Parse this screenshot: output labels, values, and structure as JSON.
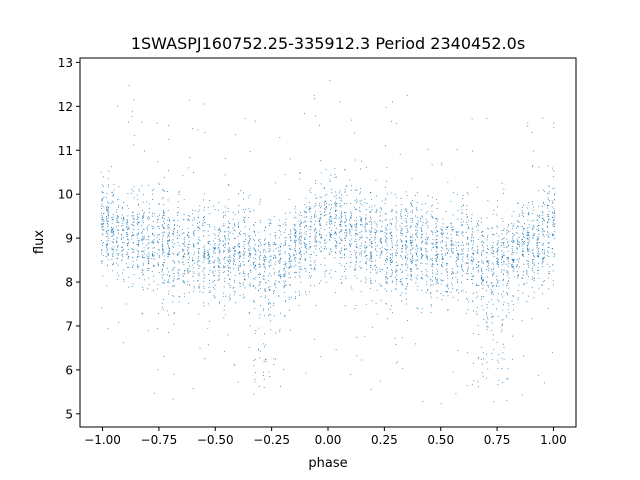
{
  "chart_data": {
    "type": "scatter",
    "title": "1SWASPJ160752.25-335912.3 Period 2340452.0s",
    "xlabel": "phase",
    "ylabel": "flux",
    "xlim": [
      -1.1,
      1.1
    ],
    "ylim": [
      4.7,
      13.1
    ],
    "xticks": [
      -1.0,
      -0.75,
      -0.5,
      -0.25,
      0.0,
      0.25,
      0.5,
      0.75,
      1.0
    ],
    "xtick_labels": [
      "−1.00",
      "−0.75",
      "−0.50",
      "−0.25",
      "0.00",
      "0.25",
      "0.50",
      "0.75",
      "1.00"
    ],
    "yticks": [
      5,
      6,
      7,
      8,
      9,
      10,
      11,
      12,
      13
    ],
    "ytick_labels": [
      "5",
      "6",
      "7",
      "8",
      "9",
      "10",
      "11",
      "12",
      "13"
    ],
    "grid": false,
    "legend": "none",
    "color": "#1f77b4",
    "description": "phase-folded light curve mirrored over phase -1..1; flux clusters near 9, sparse outliers from ~5 to ~12.7; dips near phase -0.28 and 0.72",
    "series": [
      {
        "name": "",
        "profile": [
          [
            -1.0,
            9.3
          ],
          [
            -0.9,
            9.1
          ],
          [
            -0.8,
            8.9
          ],
          [
            -0.7,
            8.7
          ],
          [
            -0.6,
            8.8
          ],
          [
            -0.5,
            8.6
          ],
          [
            -0.4,
            8.7
          ],
          [
            -0.28,
            8.4
          ],
          [
            -0.15,
            8.8
          ],
          [
            -0.05,
            9.0
          ],
          [
            0.0,
            9.3
          ],
          [
            0.1,
            9.1
          ],
          [
            0.2,
            8.9
          ],
          [
            0.3,
            8.7
          ],
          [
            0.4,
            8.8
          ],
          [
            0.5,
            8.6
          ],
          [
            0.6,
            8.7
          ],
          [
            0.72,
            8.4
          ],
          [
            0.85,
            8.8
          ],
          [
            0.95,
            9.0
          ],
          [
            1.0,
            9.3
          ]
        ]
      }
    ]
  }
}
